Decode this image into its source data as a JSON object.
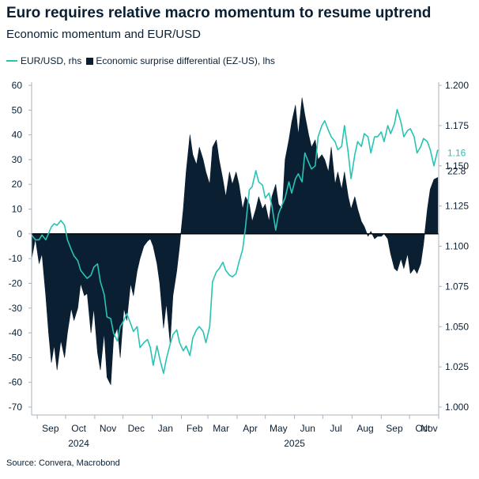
{
  "chart_data": {
    "type": "area",
    "title": "Euro requires relative macro momentum to resume uptrend",
    "subtitle": "Economic momentum and EUR/USD",
    "source": "Source: Convera, Macrobond",
    "legend": {
      "placement": "top-left",
      "eurusd": "EUR/USD, rhs",
      "surprise": "Economic surprise differential (EZ-US), lhs"
    },
    "x_axis": {
      "months": [
        "Sep",
        "Oct",
        "Nov",
        "Dec",
        "Jan",
        "Feb",
        "Mar",
        "Apr",
        "May",
        "Jun",
        "Jul",
        "Aug",
        "Sep",
        "Oct",
        "Nov"
      ],
      "years": [
        "2024",
        "2025"
      ],
      "range": [
        "2024-08-26",
        "2025-11-01"
      ]
    },
    "left_axis": {
      "min": -70,
      "max": 60,
      "ticks": [
        "60",
        "50",
        "40",
        "30",
        "20",
        "10",
        "0",
        "-10",
        "-20",
        "-30",
        "-40",
        "-50",
        "-60",
        "-70"
      ]
    },
    "right_axis": {
      "min": 1.0,
      "max": 1.2,
      "ticks": [
        "1.200",
        "1.175",
        "1.150",
        "1.125",
        "1.100",
        "1.075",
        "1.050",
        "1.025",
        "1.000"
      ]
    },
    "end_labels": {
      "eurusd": "1.16",
      "surprise": "22.8"
    },
    "colors": {
      "eurusd": "#27c4b4",
      "surprise": "#0b1f33",
      "text": "#0b1f33"
    },
    "grid": false,
    "series": [
      {
        "name": "Economic surprise differential (EZ-US), lhs",
        "axis": "left",
        "points": [
          [
            "2024-08-26",
            -10
          ],
          [
            "2024-08-30",
            -2
          ],
          [
            "2024-09-03",
            -12
          ],
          [
            "2024-09-06",
            -8
          ],
          [
            "2024-09-10",
            -25
          ],
          [
            "2024-09-13",
            -40
          ],
          [
            "2024-09-16",
            -52
          ],
          [
            "2024-09-19",
            -45
          ],
          [
            "2024-09-22",
            -55
          ],
          [
            "2024-09-26",
            -43
          ],
          [
            "2024-09-30",
            -50
          ],
          [
            "2024-10-03",
            -40
          ],
          [
            "2024-10-07",
            -30
          ],
          [
            "2024-10-10",
            -35
          ],
          [
            "2024-10-14",
            -30
          ],
          [
            "2024-10-17",
            -20
          ],
          [
            "2024-10-21",
            -25
          ],
          [
            "2024-10-24",
            -24
          ],
          [
            "2024-10-28",
            -40
          ],
          [
            "2024-10-31",
            -30
          ],
          [
            "2024-11-04",
            -48
          ],
          [
            "2024-11-07",
            -55
          ],
          [
            "2024-11-11",
            -40
          ],
          [
            "2024-11-14",
            -58
          ],
          [
            "2024-11-18",
            -61
          ],
          [
            "2024-11-21",
            -42
          ],
          [
            "2024-11-25",
            -38
          ],
          [
            "2024-11-28",
            -50
          ],
          [
            "2024-12-02",
            -30
          ],
          [
            "2024-12-05",
            -35
          ],
          [
            "2024-12-09",
            -20
          ],
          [
            "2024-12-12",
            -25
          ],
          [
            "2024-12-16",
            -15
          ],
          [
            "2024-12-19",
            -10
          ],
          [
            "2024-12-23",
            -5
          ],
          [
            "2024-12-27",
            -3
          ],
          [
            "2024-12-30",
            -2
          ],
          [
            "2025-01-02",
            -5
          ],
          [
            "2025-01-06",
            -12
          ],
          [
            "2025-01-09",
            -20
          ],
          [
            "2025-01-13",
            -38
          ],
          [
            "2025-01-16",
            -28
          ],
          [
            "2025-01-20",
            -44
          ],
          [
            "2025-01-23",
            -25
          ],
          [
            "2025-01-27",
            -15
          ],
          [
            "2025-01-30",
            -5
          ],
          [
            "2025-02-03",
            10
          ],
          [
            "2025-02-06",
            25
          ],
          [
            "2025-02-10",
            40
          ],
          [
            "2025-02-13",
            32
          ],
          [
            "2025-02-17",
            28
          ],
          [
            "2025-02-20",
            35
          ],
          [
            "2025-02-24",
            30
          ],
          [
            "2025-02-27",
            25
          ],
          [
            "2025-03-03",
            20
          ],
          [
            "2025-03-06",
            35
          ],
          [
            "2025-03-10",
            38
          ],
          [
            "2025-03-13",
            30
          ],
          [
            "2025-03-17",
            22
          ],
          [
            "2025-03-20",
            15
          ],
          [
            "2025-03-24",
            25
          ],
          [
            "2025-03-27",
            20
          ],
          [
            "2025-03-31",
            25
          ],
          [
            "2025-04-03",
            20
          ],
          [
            "2025-04-07",
            10
          ],
          [
            "2025-04-10",
            15
          ],
          [
            "2025-04-14",
            12
          ],
          [
            "2025-04-17",
            5
          ],
          [
            "2025-04-21",
            10
          ],
          [
            "2025-04-24",
            15
          ],
          [
            "2025-04-28",
            10
          ],
          [
            "2025-05-01",
            12
          ],
          [
            "2025-05-05",
            5
          ],
          [
            "2025-05-08",
            15
          ],
          [
            "2025-05-12",
            20
          ],
          [
            "2025-05-15",
            12
          ],
          [
            "2025-05-19",
            10
          ],
          [
            "2025-05-22",
            30
          ],
          [
            "2025-05-26",
            38
          ],
          [
            "2025-05-29",
            45
          ],
          [
            "2025-06-02",
            52
          ],
          [
            "2025-06-05",
            40
          ],
          [
            "2025-06-09",
            55
          ],
          [
            "2025-06-12",
            48
          ],
          [
            "2025-06-16",
            40
          ],
          [
            "2025-06-19",
            35
          ],
          [
            "2025-06-23",
            38
          ],
          [
            "2025-06-26",
            30
          ],
          [
            "2025-06-30",
            32
          ],
          [
            "2025-07-03",
            30
          ],
          [
            "2025-07-07",
            25
          ],
          [
            "2025-07-10",
            35
          ],
          [
            "2025-07-14",
            20
          ],
          [
            "2025-07-17",
            25
          ],
          [
            "2025-07-21",
            18
          ],
          [
            "2025-07-24",
            25
          ],
          [
            "2025-07-28",
            15
          ],
          [
            "2025-07-31",
            10
          ],
          [
            "2025-08-04",
            15
          ],
          [
            "2025-08-07",
            10
          ],
          [
            "2025-08-11",
            5
          ],
          [
            "2025-08-14",
            3
          ],
          [
            "2025-08-18",
            -1
          ],
          [
            "2025-08-21",
            1
          ],
          [
            "2025-08-25",
            -2
          ],
          [
            "2025-08-28",
            -1
          ],
          [
            "2025-09-01",
            -1
          ],
          [
            "2025-09-04",
            0
          ],
          [
            "2025-09-08",
            -2
          ],
          [
            "2025-09-11",
            -8
          ],
          [
            "2025-09-15",
            -14
          ],
          [
            "2025-09-18",
            -15
          ],
          [
            "2025-09-22",
            -10
          ],
          [
            "2025-09-25",
            -14
          ],
          [
            "2025-09-29",
            -8
          ],
          [
            "2025-10-02",
            -16
          ],
          [
            "2025-10-06",
            -14
          ],
          [
            "2025-10-09",
            -16
          ],
          [
            "2025-10-13",
            -12
          ],
          [
            "2025-10-16",
            -4
          ],
          [
            "2025-10-20",
            10
          ],
          [
            "2025-10-23",
            18
          ],
          [
            "2025-10-27",
            22
          ],
          [
            "2025-10-31",
            22.8
          ]
        ]
      },
      {
        "name": "EUR/USD, rhs",
        "axis": "right",
        "points": [
          [
            "2024-08-26",
            1.107
          ],
          [
            "2024-08-30",
            1.104
          ],
          [
            "2024-09-03",
            1.104
          ],
          [
            "2024-09-06",
            1.107
          ],
          [
            "2024-09-10",
            1.104
          ],
          [
            "2024-09-13",
            1.108
          ],
          [
            "2024-09-16",
            1.112
          ],
          [
            "2024-09-19",
            1.114
          ],
          [
            "2024-09-22",
            1.113
          ],
          [
            "2024-09-26",
            1.116
          ],
          [
            "2024-09-30",
            1.113
          ],
          [
            "2024-10-03",
            1.104
          ],
          [
            "2024-10-07",
            1.098
          ],
          [
            "2024-10-10",
            1.094
          ],
          [
            "2024-10-14",
            1.091
          ],
          [
            "2024-10-17",
            1.085
          ],
          [
            "2024-10-21",
            1.082
          ],
          [
            "2024-10-24",
            1.08
          ],
          [
            "2024-10-28",
            1.082
          ],
          [
            "2024-10-31",
            1.087
          ],
          [
            "2024-11-04",
            1.089
          ],
          [
            "2024-11-07",
            1.078
          ],
          [
            "2024-11-11",
            1.07
          ],
          [
            "2024-11-14",
            1.056
          ],
          [
            "2024-11-18",
            1.055
          ],
          [
            "2024-11-21",
            1.046
          ],
          [
            "2024-11-25",
            1.041
          ],
          [
            "2024-11-28",
            1.05
          ],
          [
            "2024-12-02",
            1.054
          ],
          [
            "2024-12-05",
            1.058
          ],
          [
            "2024-12-09",
            1.052
          ],
          [
            "2024-12-12",
            1.047
          ],
          [
            "2024-12-16",
            1.05
          ],
          [
            "2024-12-19",
            1.037
          ],
          [
            "2024-12-23",
            1.04
          ],
          [
            "2024-12-27",
            1.042
          ],
          [
            "2024-12-30",
            1.037
          ],
          [
            "2025-01-02",
            1.026
          ],
          [
            "2025-01-06",
            1.038
          ],
          [
            "2025-01-09",
            1.03
          ],
          [
            "2025-01-13",
            1.021
          ],
          [
            "2025-01-16",
            1.03
          ],
          [
            "2025-01-20",
            1.039
          ],
          [
            "2025-01-23",
            1.045
          ],
          [
            "2025-01-27",
            1.048
          ],
          [
            "2025-01-30",
            1.04
          ],
          [
            "2025-02-03",
            1.035
          ],
          [
            "2025-02-06",
            1.038
          ],
          [
            "2025-02-10",
            1.032
          ],
          [
            "2025-02-13",
            1.043
          ],
          [
            "2025-02-17",
            1.048
          ],
          [
            "2025-02-20",
            1.05
          ],
          [
            "2025-02-24",
            1.047
          ],
          [
            "2025-02-27",
            1.04
          ],
          [
            "2025-03-03",
            1.05
          ],
          [
            "2025-03-06",
            1.078
          ],
          [
            "2025-03-10",
            1.084
          ],
          [
            "2025-03-13",
            1.086
          ],
          [
            "2025-03-17",
            1.09
          ],
          [
            "2025-03-20",
            1.085
          ],
          [
            "2025-03-24",
            1.082
          ],
          [
            "2025-03-27",
            1.081
          ],
          [
            "2025-03-31",
            1.083
          ],
          [
            "2025-04-03",
            1.09
          ],
          [
            "2025-04-07",
            1.098
          ],
          [
            "2025-04-10",
            1.112
          ],
          [
            "2025-04-14",
            1.135
          ],
          [
            "2025-04-17",
            1.137
          ],
          [
            "2025-04-21",
            1.147
          ],
          [
            "2025-04-24",
            1.14
          ],
          [
            "2025-04-28",
            1.138
          ],
          [
            "2025-05-01",
            1.13
          ],
          [
            "2025-05-05",
            1.133
          ],
          [
            "2025-05-08",
            1.125
          ],
          [
            "2025-05-12",
            1.11
          ],
          [
            "2025-05-15",
            1.12
          ],
          [
            "2025-05-19",
            1.126
          ],
          [
            "2025-05-22",
            1.13
          ],
          [
            "2025-05-26",
            1.14
          ],
          [
            "2025-05-29",
            1.133
          ],
          [
            "2025-06-02",
            1.142
          ],
          [
            "2025-06-05",
            1.145
          ],
          [
            "2025-06-09",
            1.14
          ],
          [
            "2025-06-12",
            1.158
          ],
          [
            "2025-06-16",
            1.152
          ],
          [
            "2025-06-19",
            1.148
          ],
          [
            "2025-06-23",
            1.15
          ],
          [
            "2025-06-26",
            1.168
          ],
          [
            "2025-06-30",
            1.175
          ],
          [
            "2025-07-03",
            1.178
          ],
          [
            "2025-07-07",
            1.172
          ],
          [
            "2025-07-10",
            1.168
          ],
          [
            "2025-07-14",
            1.165
          ],
          [
            "2025-07-17",
            1.16
          ],
          [
            "2025-07-21",
            1.162
          ],
          [
            "2025-07-24",
            1.175
          ],
          [
            "2025-07-28",
            1.158
          ],
          [
            "2025-07-31",
            1.142
          ],
          [
            "2025-08-04",
            1.157
          ],
          [
            "2025-08-07",
            1.165
          ],
          [
            "2025-08-11",
            1.162
          ],
          [
            "2025-08-14",
            1.17
          ],
          [
            "2025-08-18",
            1.168
          ],
          [
            "2025-08-21",
            1.158
          ],
          [
            "2025-08-25",
            1.168
          ],
          [
            "2025-08-28",
            1.168
          ],
          [
            "2025-09-01",
            1.171
          ],
          [
            "2025-09-04",
            1.165
          ],
          [
            "2025-09-08",
            1.175
          ],
          [
            "2025-09-11",
            1.17
          ],
          [
            "2025-09-15",
            1.176
          ],
          [
            "2025-09-18",
            1.185
          ],
          [
            "2025-09-22",
            1.177
          ],
          [
            "2025-09-25",
            1.168
          ],
          [
            "2025-09-29",
            1.172
          ],
          [
            "2025-10-02",
            1.173
          ],
          [
            "2025-10-06",
            1.168
          ],
          [
            "2025-10-09",
            1.158
          ],
          [
            "2025-10-13",
            1.162
          ],
          [
            "2025-10-16",
            1.167
          ],
          [
            "2025-10-20",
            1.165
          ],
          [
            "2025-10-23",
            1.16
          ],
          [
            "2025-10-27",
            1.15
          ],
          [
            "2025-10-31",
            1.16
          ]
        ]
      }
    ]
  }
}
